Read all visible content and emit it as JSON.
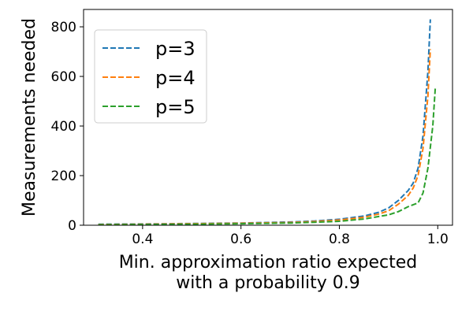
{
  "chart_data": {
    "type": "line",
    "xlabel_line1": "Min. approximation ratio expected",
    "xlabel_line2": "with a probability 0.9",
    "ylabel": "Measurements needed",
    "xlim": [
      0.28,
      1.03
    ],
    "ylim": [
      0,
      870
    ],
    "xticks": [
      0.4,
      0.6,
      0.8,
      1.0
    ],
    "xtick_labels": [
      "0.4",
      "0.6",
      "0.8",
      "1.0"
    ],
    "yticks": [
      0,
      200,
      400,
      600,
      800
    ],
    "ytick_labels": [
      "0",
      "200",
      "400",
      "600",
      "800"
    ],
    "grid": false,
    "legend_position": "top-left",
    "series": [
      {
        "name": "p=3",
        "color": "#1f77b4",
        "x": [
          0.31,
          0.4,
          0.5,
          0.6,
          0.7,
          0.75,
          0.8,
          0.85,
          0.88,
          0.9,
          0.92,
          0.94,
          0.95,
          0.96,
          0.97,
          0.98,
          0.985
        ],
        "y": [
          4,
          5,
          7,
          9,
          13,
          17,
          24,
          37,
          52,
          70,
          100,
          140,
          170,
          230,
          360,
          620,
          830
        ]
      },
      {
        "name": "p=4",
        "color": "#ff7f0e",
        "x": [
          0.31,
          0.4,
          0.5,
          0.6,
          0.7,
          0.75,
          0.8,
          0.85,
          0.88,
          0.9,
          0.92,
          0.94,
          0.95,
          0.96,
          0.97,
          0.98,
          0.985
        ],
        "y": [
          3,
          4,
          6,
          8,
          11,
          15,
          21,
          32,
          45,
          58,
          85,
          120,
          150,
          200,
          310,
          520,
          710
        ]
      },
      {
        "name": "p=5",
        "color": "#2ca02c",
        "x": [
          0.31,
          0.4,
          0.5,
          0.6,
          0.7,
          0.75,
          0.8,
          0.85,
          0.9,
          0.92,
          0.94,
          0.96,
          0.97,
          0.98,
          0.99,
          0.995
        ],
        "y": [
          2,
          3,
          4,
          6,
          9,
          12,
          16,
          25,
          42,
          55,
          75,
          90,
          130,
          230,
          400,
          555
        ]
      }
    ]
  }
}
